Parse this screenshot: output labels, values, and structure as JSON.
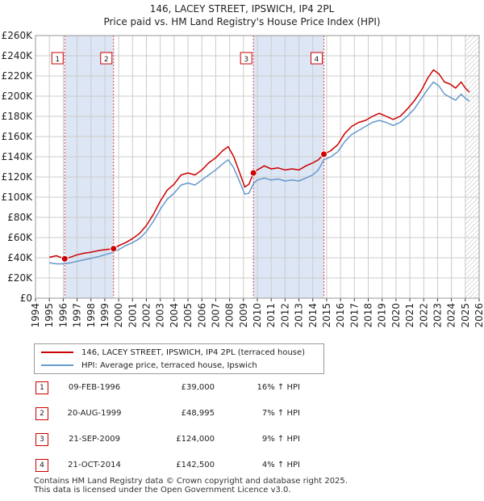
{
  "title_line1": "146, LACEY STREET, IPSWICH, IP4 2PL",
  "title_line2": "Price paid vs. HM Land Registry's House Price Index (HPI)",
  "colors": {
    "red": "#cc0000",
    "blue": "#6699cc",
    "shade": "#dce6f5",
    "grid": "#cccccc"
  },
  "chart_data": {
    "type": "line",
    "ylim": [
      0,
      260000
    ],
    "xlim": [
      1994,
      2026
    ],
    "y_ticks": [
      {
        "value": 0,
        "label": "£0"
      },
      {
        "value": 20000,
        "label": "£20K"
      },
      {
        "value": 40000,
        "label": "£40K"
      },
      {
        "value": 60000,
        "label": "£60K"
      },
      {
        "value": 80000,
        "label": "£80K"
      },
      {
        "value": 100000,
        "label": "£100K"
      },
      {
        "value": 120000,
        "label": "£120K"
      },
      {
        "value": 140000,
        "label": "£140K"
      },
      {
        "value": 160000,
        "label": "£160K"
      },
      {
        "value": 180000,
        "label": "£180K"
      },
      {
        "value": 200000,
        "label": "£200K"
      },
      {
        "value": 220000,
        "label": "£220K"
      },
      {
        "value": 240000,
        "label": "£240K"
      },
      {
        "value": 260000,
        "label": "£260K"
      }
    ],
    "x_ticks": [
      "1994",
      "1995",
      "1996",
      "1997",
      "1998",
      "1999",
      "2000",
      "2001",
      "2002",
      "2003",
      "2004",
      "2005",
      "2006",
      "2007",
      "2008",
      "2009",
      "2010",
      "2011",
      "2012",
      "2013",
      "2014",
      "2015",
      "2016",
      "2017",
      "2018",
      "2019",
      "2020",
      "2021",
      "2022",
      "2023",
      "2024",
      "2025",
      "2026"
    ],
    "shaded_ranges": [
      [
        1996.11,
        1999.63
      ],
      [
        2009.72,
        2014.8
      ]
    ],
    "hatch_from": 2025.0,
    "series": [
      {
        "name": "146, LACEY STREET, IPSWICH, IP4 2PL (terraced house)",
        "color": "#cc0000",
        "points": [
          [
            1995,
            40500
          ],
          [
            1995.5,
            42000
          ],
          [
            1996.11,
            39000
          ],
          [
            1996.6,
            41000
          ],
          [
            1997,
            43000
          ],
          [
            1997.5,
            44500
          ],
          [
            1998,
            45500
          ],
          [
            1998.5,
            47000
          ],
          [
            1999,
            48000
          ],
          [
            1999.63,
            48995
          ],
          [
            2000,
            52000
          ],
          [
            2000.5,
            55000
          ],
          [
            2001,
            59000
          ],
          [
            2001.5,
            64000
          ],
          [
            2002,
            72000
          ],
          [
            2002.5,
            83000
          ],
          [
            2003,
            96000
          ],
          [
            2003.5,
            107000
          ],
          [
            2004,
            113000
          ],
          [
            2004.5,
            122000
          ],
          [
            2005,
            124000
          ],
          [
            2005.5,
            122000
          ],
          [
            2006,
            127000
          ],
          [
            2006.5,
            134000
          ],
          [
            2007,
            139000
          ],
          [
            2007.5,
            146000
          ],
          [
            2007.9,
            150000
          ],
          [
            2008.3,
            140000
          ],
          [
            2008.7,
            125000
          ],
          [
            2009.1,
            110000
          ],
          [
            2009.4,
            113000
          ],
          [
            2009.72,
            124000
          ],
          [
            2010,
            127000
          ],
          [
            2010.5,
            131000
          ],
          [
            2011,
            128000
          ],
          [
            2011.5,
            129000
          ],
          [
            2012,
            127000
          ],
          [
            2012.5,
            128000
          ],
          [
            2013,
            127000
          ],
          [
            2013.5,
            131000
          ],
          [
            2014,
            134000
          ],
          [
            2014.4,
            137000
          ],
          [
            2014.8,
            142500
          ],
          [
            2015.3,
            146000
          ],
          [
            2015.8,
            152000
          ],
          [
            2016.3,
            163000
          ],
          [
            2016.8,
            170000
          ],
          [
            2017.3,
            174000
          ],
          [
            2017.8,
            176000
          ],
          [
            2018.3,
            180000
          ],
          [
            2018.8,
            183000
          ],
          [
            2019.3,
            180000
          ],
          [
            2019.8,
            177000
          ],
          [
            2020.3,
            180000
          ],
          [
            2020.8,
            187000
          ],
          [
            2021.3,
            195000
          ],
          [
            2021.8,
            205000
          ],
          [
            2022.3,
            218000
          ],
          [
            2022.7,
            226000
          ],
          [
            2023.1,
            222000
          ],
          [
            2023.5,
            214000
          ],
          [
            2023.9,
            212000
          ],
          [
            2024.3,
            208000
          ],
          [
            2024.7,
            214000
          ],
          [
            2025.0,
            208000
          ],
          [
            2025.3,
            204000
          ]
        ]
      },
      {
        "name": "HPI: Average price, terraced house, Ipswich",
        "color": "#6699cc",
        "points": [
          [
            1995,
            35000
          ],
          [
            1995.5,
            34000
          ],
          [
            1996,
            34000
          ],
          [
            1996.5,
            35000
          ],
          [
            1997,
            36500
          ],
          [
            1997.5,
            38000
          ],
          [
            1998,
            39500
          ],
          [
            1998.5,
            41000
          ],
          [
            1999,
            43000
          ],
          [
            1999.5,
            45000
          ],
          [
            2000,
            48000
          ],
          [
            2000.5,
            52000
          ],
          [
            2001,
            55000
          ],
          [
            2001.5,
            59000
          ],
          [
            2002,
            66000
          ],
          [
            2002.5,
            76000
          ],
          [
            2003,
            88000
          ],
          [
            2003.5,
            98000
          ],
          [
            2004,
            104000
          ],
          [
            2004.5,
            112000
          ],
          [
            2005,
            114000
          ],
          [
            2005.5,
            112000
          ],
          [
            2006,
            117000
          ],
          [
            2006.5,
            122000
          ],
          [
            2007,
            127000
          ],
          [
            2007.5,
            133000
          ],
          [
            2007.9,
            137000
          ],
          [
            2008.3,
            129000
          ],
          [
            2008.7,
            116000
          ],
          [
            2009.1,
            103000
          ],
          [
            2009.4,
            104000
          ],
          [
            2009.72,
            113500
          ],
          [
            2010,
            117000
          ],
          [
            2010.5,
            119000
          ],
          [
            2011,
            117000
          ],
          [
            2011.5,
            118000
          ],
          [
            2012,
            116000
          ],
          [
            2012.5,
            117000
          ],
          [
            2013,
            116000
          ],
          [
            2013.5,
            119000
          ],
          [
            2014,
            122000
          ],
          [
            2014.4,
            127000
          ],
          [
            2014.8,
            137000
          ],
          [
            2015.3,
            140000
          ],
          [
            2015.8,
            145000
          ],
          [
            2016.3,
            155000
          ],
          [
            2016.8,
            162000
          ],
          [
            2017.3,
            166000
          ],
          [
            2017.8,
            170000
          ],
          [
            2018.3,
            174000
          ],
          [
            2018.8,
            176000
          ],
          [
            2019.3,
            174000
          ],
          [
            2019.8,
            171000
          ],
          [
            2020.3,
            174000
          ],
          [
            2020.8,
            180000
          ],
          [
            2021.3,
            187000
          ],
          [
            2021.8,
            197000
          ],
          [
            2022.3,
            207000
          ],
          [
            2022.7,
            214000
          ],
          [
            2023.1,
            210000
          ],
          [
            2023.5,
            202000
          ],
          [
            2023.9,
            199000
          ],
          [
            2024.3,
            196000
          ],
          [
            2024.7,
            202000
          ],
          [
            2025.0,
            198000
          ],
          [
            2025.3,
            195000
          ]
        ]
      }
    ],
    "transactions": [
      {
        "n": "1",
        "year": 1996.11,
        "price": 39000,
        "date": "09-FEB-1996",
        "price_label": "£39,000",
        "hpi": "16% ↑ HPI"
      },
      {
        "n": "2",
        "year": 1999.63,
        "price": 48995,
        "date": "20-AUG-1999",
        "price_label": "£48,995",
        "hpi": "7% ↑ HPI"
      },
      {
        "n": "3",
        "year": 2009.72,
        "price": 124000,
        "date": "21-SEP-2009",
        "price_label": "£124,000",
        "hpi": "9% ↑ HPI"
      },
      {
        "n": "4",
        "year": 2014.8,
        "price": 142500,
        "date": "21-OCT-2014",
        "price_label": "£142,500",
        "hpi": "4% ↑ HPI"
      }
    ]
  },
  "legend": {
    "red_label": "146, LACEY STREET, IPSWICH, IP4 2PL (terraced house)",
    "blue_label": "HPI: Average price, terraced house, Ipswich"
  },
  "footer": {
    "line1": "Contains HM Land Registry data © Crown copyright and database right 2025.",
    "line2": "This data is licensed under the Open Government Licence v3.0."
  }
}
